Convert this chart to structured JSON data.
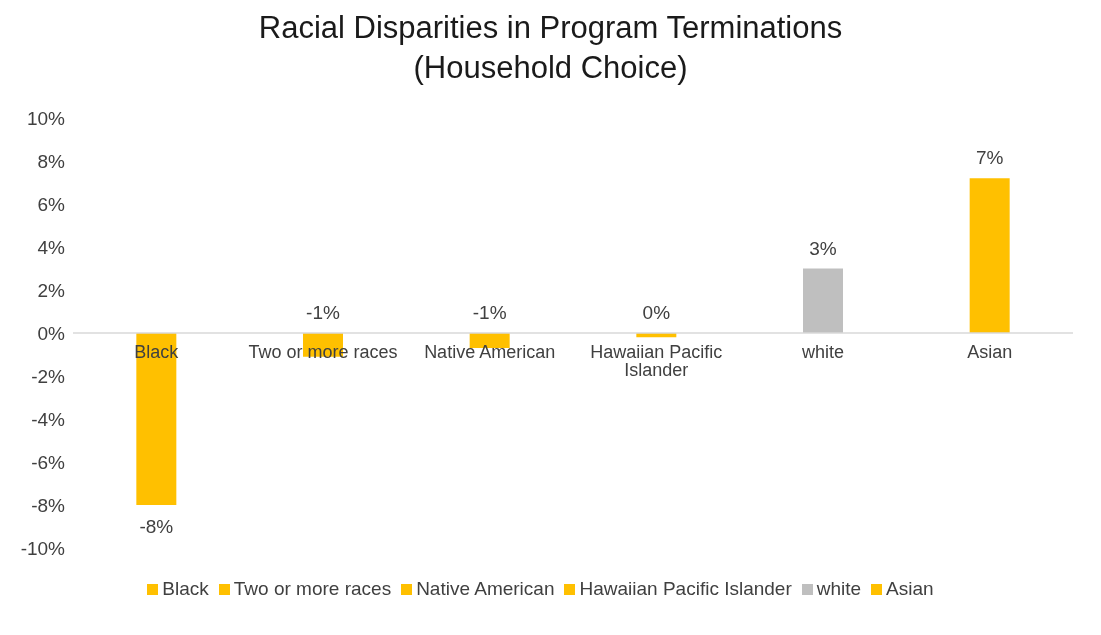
{
  "chart_data": {
    "type": "bar",
    "title": "Racial Disparities in Program Terminations\n(Household Choice)",
    "categories": [
      "Black",
      "Two or more races",
      "Native American",
      "Hawaiian Pacific Islander",
      "white",
      "Asian"
    ],
    "stacked": true,
    "series": [
      {
        "name": "Black",
        "color": "#ffc000",
        "values": [
          -8.0,
          null,
          null,
          null,
          null,
          null
        ],
        "value_labels": [
          "-8%",
          null,
          null,
          null,
          null,
          null
        ]
      },
      {
        "name": "Two or more races",
        "color": "#ffc000",
        "values": [
          null,
          -1.1,
          null,
          null,
          null,
          null
        ],
        "value_labels": [
          null,
          "-1%",
          null,
          null,
          null,
          null
        ]
      },
      {
        "name": "Native American",
        "color": "#ffc000",
        "values": [
          null,
          null,
          -0.7,
          null,
          null,
          null
        ],
        "value_labels": [
          null,
          null,
          "-1%",
          null,
          null,
          null
        ]
      },
      {
        "name": "Hawaiian Pacific Islander",
        "color": "#ffc000",
        "values": [
          null,
          null,
          null,
          -0.2,
          null,
          null
        ],
        "value_labels": [
          null,
          null,
          null,
          "0%",
          null,
          null
        ]
      },
      {
        "name": "white",
        "color": "#bfbfbf",
        "values": [
          null,
          null,
          null,
          null,
          3.0,
          null
        ],
        "value_labels": [
          null,
          null,
          null,
          null,
          "3%",
          null
        ]
      },
      {
        "name": "Asian",
        "color": "#ffc000",
        "values": [
          null,
          null,
          null,
          null,
          null,
          7.2
        ],
        "value_labels": [
          null,
          null,
          null,
          null,
          null,
          "7%"
        ]
      }
    ],
    "ylim": [
      -10,
      10
    ],
    "yticks": [
      {
        "value": -10,
        "label": "-10%"
      },
      {
        "value": -8,
        "label": "-8%"
      },
      {
        "value": -6,
        "label": "-6%"
      },
      {
        "value": -4,
        "label": "-4%"
      },
      {
        "value": -2,
        "label": "-2%"
      },
      {
        "value": 0,
        "label": "0%"
      },
      {
        "value": 2,
        "label": "2%"
      },
      {
        "value": 4,
        "label": "4%"
      },
      {
        "value": 6,
        "label": "6%"
      },
      {
        "value": 8,
        "label": "8%"
      },
      {
        "value": 10,
        "label": "10%"
      }
    ],
    "legend": "bottom"
  }
}
